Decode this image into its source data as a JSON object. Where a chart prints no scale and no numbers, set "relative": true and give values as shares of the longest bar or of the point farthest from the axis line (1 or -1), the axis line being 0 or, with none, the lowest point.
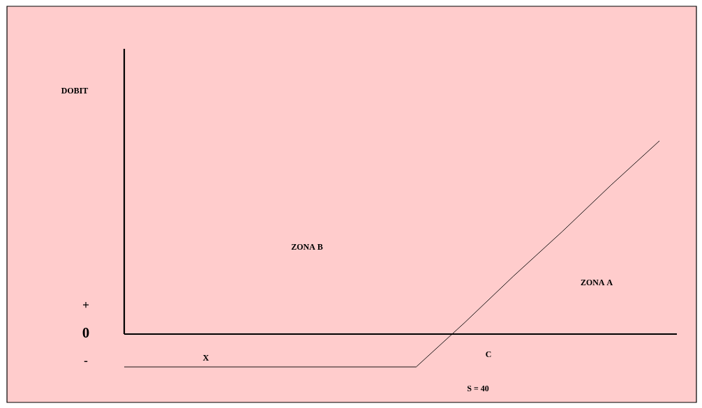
{
  "chart_data": {
    "type": "line",
    "relative": true,
    "categories": [
      null,
      null,
      null,
      null,
      null,
      null,
      null,
      null,
      null,
      null,
      null,
      null
    ],
    "values": [
      -0.17,
      -0.17,
      -0.17,
      -0.17,
      -0.17,
      -0.17,
      -0.17,
      0.06,
      0.3,
      0.53,
      0.77,
      1
    ],
    "color": "#000000",
    "annotations": [
      "DOBIT",
      "ZONA  B",
      "ZONA A",
      "+",
      "0",
      "-",
      "X",
      "C",
      "S = 40"
    ]
  }
}
